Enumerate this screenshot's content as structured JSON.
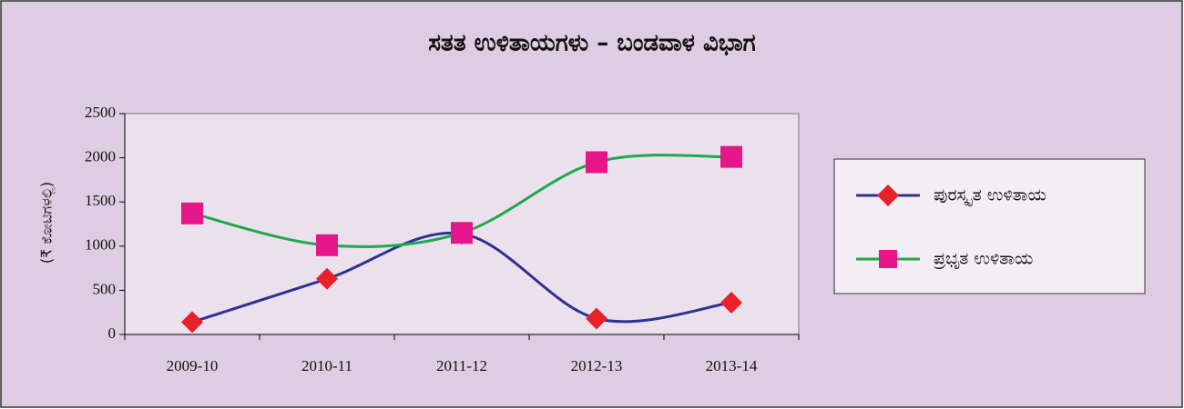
{
  "chart_data": {
    "type": "line",
    "title": "ಸತತ ಉಳಿತಾಯಗಳು – ಬಂಡವಾಳ ವಿಭಾಗ",
    "y_label": "(₹ ಕೋಟಿಗಳಲ್ಲಿ)",
    "categories": [
      "2009-10",
      "2010-11",
      "2011-12",
      "2012-13",
      "2013-14"
    ],
    "series": [
      {
        "name": "ಪುರಸ್ಕೃತ ಉಳಿತಾಯ",
        "color": "#2e3192",
        "marker": "diamond",
        "marker_color": "#e8202a",
        "values": [
          140,
          630,
          1140,
          180,
          360
        ]
      },
      {
        "name": "ಪ್ರಭೃತ ಉಳಿತಾಯ",
        "color": "#1fa84a",
        "marker": "square",
        "marker_color": "#e5168a",
        "values": [
          1370,
          1010,
          1150,
          1950,
          2010
        ]
      }
    ],
    "ylim": [
      0,
      2500
    ],
    "yticks": [
      0,
      500,
      1000,
      1500,
      2000,
      2500
    ],
    "legend": "right",
    "smooth": true
  }
}
